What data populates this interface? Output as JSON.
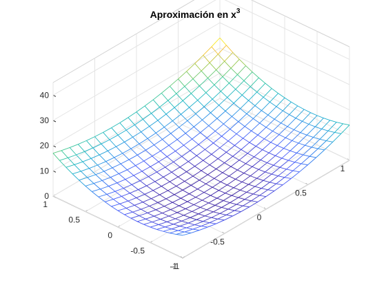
{
  "chart_data": {
    "type": "surface",
    "title": "Aproximación en x",
    "title_superscript": "3",
    "xlabel": "",
    "ylabel": "",
    "zlabel": "",
    "x_range": [
      -1,
      1
    ],
    "y_range": [
      -1,
      1
    ],
    "zlim": [
      0,
      45
    ],
    "x_ticks": [
      {
        "value": -1,
        "label": "-1"
      },
      {
        "value": -0.5,
        "label": "-0.5"
      },
      {
        "value": 0,
        "label": "0"
      },
      {
        "value": 0.5,
        "label": "0.5"
      },
      {
        "value": 1,
        "label": "1"
      }
    ],
    "y_ticks": [
      {
        "value": -1,
        "label": "-1"
      },
      {
        "value": -0.5,
        "label": "-0.5"
      },
      {
        "value": 0,
        "label": "0"
      },
      {
        "value": 0.5,
        "label": "0.5"
      },
      {
        "value": 1,
        "label": "1"
      }
    ],
    "z_ticks": [
      {
        "value": 0,
        "label": "0"
      },
      {
        "value": 10,
        "label": "10"
      },
      {
        "value": 20,
        "label": "20"
      },
      {
        "value": 30,
        "label": "30"
      },
      {
        "value": 40,
        "label": "40"
      }
    ],
    "grid": true,
    "style": "mesh",
    "colormap": "parula",
    "mesh_lines": 21,
    "corner_values": [
      {
        "x": -1,
        "y": -1,
        "z": 9
      },
      {
        "x": 1,
        "y": -1,
        "z": 14
      },
      {
        "x": 1,
        "y": 1,
        "z": 24
      },
      {
        "x": -1,
        "y": 1,
        "z": 17
      }
    ],
    "min_value": {
      "x": 0,
      "y": 0,
      "z": 3
    }
  }
}
